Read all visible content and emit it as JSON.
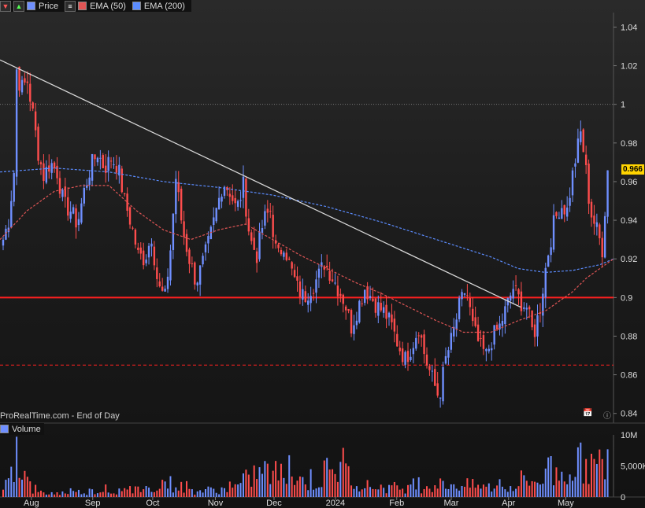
{
  "legend": {
    "price_label": "Price",
    "ema50_label": "EMA (50)",
    "ema200_label": "EMA (200)",
    "volume_label": "Volume"
  },
  "source_text": "ProRealTime.com - End of Day",
  "current_price_label": "0.966",
  "colors": {
    "up": "#6f8fff",
    "down": "#ff4d4d",
    "ema50": "#e05555",
    "ema200": "#5b8cff",
    "trendline": "#d8d8d8",
    "support": "#ff2020",
    "price_tag": "#ffd400"
  },
  "icons": [
    "calendar-icon",
    "info-icon",
    "arrow-down-icon",
    "arrow-up-icon",
    "list-icon"
  ],
  "chart_data": {
    "type": "candlestick",
    "price_axis": {
      "ticks": [
        "0.84",
        "0.86",
        "0.88",
        "0.9",
        "0.92",
        "0.94",
        "0.96",
        "0.98",
        "1",
        "1.02",
        "1.04"
      ],
      "ylim": [
        0.835,
        1.0475
      ]
    },
    "volume_axis": {
      "ticks": [
        "0",
        "5,000K",
        "10M"
      ],
      "ylim": [
        0,
        10000000
      ]
    },
    "x_labels": [
      {
        "label": "Aug",
        "week": 2.3
      },
      {
        "label": "Sep",
        "week": 6.8
      },
      {
        "label": "Oct",
        "week": 11.2
      },
      {
        "label": "Nov",
        "week": 15.8
      },
      {
        "label": "Dec",
        "week": 20.1
      },
      {
        "label": "2024",
        "week": 24.6
      },
      {
        "label": "Feb",
        "week": 29.1
      },
      {
        "label": "Mar",
        "week": 33.1
      },
      {
        "label": "Apr",
        "week": 37.3
      },
      {
        "label": "May",
        "week": 41.5
      }
    ],
    "horizontal_lines": [
      {
        "value": 0.9,
        "style": "solid"
      },
      {
        "value": 0.865,
        "style": "dashed"
      },
      {
        "value": 1.0,
        "style": "dotted"
      }
    ],
    "trendline": [
      {
        "week": 0,
        "value": 1.023
      },
      {
        "week": 38.2,
        "value": 0.895
      }
    ],
    "weeks_total": 45,
    "price_path": [
      [
        0,
        0.93
      ],
      [
        0.4,
        0.94
      ],
      [
        0.8,
        0.965
      ],
      [
        1.0,
        1.018
      ],
      [
        1.3,
        1.008
      ],
      [
        1.8,
        1.012
      ],
      [
        2.2,
        0.995
      ],
      [
        2.6,
        0.975
      ],
      [
        3.0,
        0.963
      ],
      [
        3.5,
        0.97
      ],
      [
        4.0,
        0.965
      ],
      [
        4.5,
        0.948
      ],
      [
        5.0,
        0.945
      ],
      [
        5.5,
        0.938
      ],
      [
        6.0,
        0.955
      ],
      [
        6.5,
        0.968
      ],
      [
        7.0,
        0.975
      ],
      [
        7.5,
        0.967
      ],
      [
        8.0,
        0.972
      ],
      [
        8.5,
        0.968
      ],
      [
        9.0,
        0.95
      ],
      [
        9.5,
        0.938
      ],
      [
        10.0,
        0.922
      ],
      [
        10.5,
        0.92
      ],
      [
        11.0,
        0.932
      ],
      [
        11.5,
        0.905
      ],
      [
        12.0,
        0.9
      ],
      [
        12.4,
        0.925
      ],
      [
        12.8,
        0.962
      ],
      [
        13.3,
        0.935
      ],
      [
        13.8,
        0.92
      ],
      [
        14.3,
        0.908
      ],
      [
        14.8,
        0.918
      ],
      [
        15.3,
        0.93
      ],
      [
        15.8,
        0.945
      ],
      [
        16.3,
        0.96
      ],
      [
        16.8,
        0.955
      ],
      [
        17.3,
        0.945
      ],
      [
        17.8,
        0.958
      ],
      [
        18.3,
        0.93
      ],
      [
        18.8,
        0.922
      ],
      [
        19.3,
        0.94
      ],
      [
        19.8,
        0.945
      ],
      [
        20.3,
        0.92
      ],
      [
        20.8,
        0.928
      ],
      [
        21.3,
        0.915
      ],
      [
        21.8,
        0.905
      ],
      [
        22.3,
        0.9
      ],
      [
        22.8,
        0.905
      ],
      [
        23.3,
        0.91
      ],
      [
        23.8,
        0.918
      ],
      [
        24.3,
        0.912
      ],
      [
        24.8,
        0.905
      ],
      [
        25.3,
        0.898
      ],
      [
        25.8,
        0.885
      ],
      [
        26.3,
        0.895
      ],
      [
        26.8,
        0.905
      ],
      [
        27.3,
        0.9
      ],
      [
        27.8,
        0.895
      ],
      [
        28.3,
        0.892
      ],
      [
        28.8,
        0.885
      ],
      [
        29.3,
        0.875
      ],
      [
        29.8,
        0.868
      ],
      [
        30.3,
        0.875
      ],
      [
        30.8,
        0.885
      ],
      [
        31.3,
        0.868
      ],
      [
        31.8,
        0.858
      ],
      [
        32.3,
        0.848
      ],
      [
        32.8,
        0.868
      ],
      [
        33.3,
        0.88
      ],
      [
        33.8,
        0.895
      ],
      [
        34.3,
        0.905
      ],
      [
        34.8,
        0.885
      ],
      [
        35.3,
        0.875
      ],
      [
        35.8,
        0.87
      ],
      [
        36.3,
        0.88
      ],
      [
        36.8,
        0.885
      ],
      [
        37.3,
        0.895
      ],
      [
        37.8,
        0.905
      ],
      [
        38.3,
        0.898
      ],
      [
        38.8,
        0.895
      ],
      [
        39.3,
        0.88
      ],
      [
        39.8,
        0.895
      ],
      [
        40.3,
        0.92
      ],
      [
        40.8,
        0.938
      ],
      [
        41.3,
        0.948
      ],
      [
        41.8,
        0.945
      ],
      [
        42.3,
        0.968
      ],
      [
        42.8,
        0.985
      ],
      [
        43.1,
        0.972
      ],
      [
        43.5,
        0.945
      ],
      [
        44.0,
        0.935
      ],
      [
        44.4,
        0.925
      ],
      [
        44.8,
        0.966
      ]
    ],
    "ema50_path": [
      [
        0,
        0.93
      ],
      [
        2,
        0.945
      ],
      [
        4,
        0.955
      ],
      [
        6,
        0.958
      ],
      [
        8,
        0.958
      ],
      [
        10,
        0.945
      ],
      [
        12,
        0.935
      ],
      [
        14,
        0.93
      ],
      [
        16,
        0.935
      ],
      [
        18,
        0.938
      ],
      [
        20,
        0.93
      ],
      [
        22,
        0.922
      ],
      [
        24,
        0.915
      ],
      [
        26,
        0.908
      ],
      [
        28,
        0.902
      ],
      [
        30,
        0.895
      ],
      [
        32,
        0.888
      ],
      [
        34,
        0.882
      ],
      [
        36,
        0.882
      ],
      [
        38,
        0.888
      ],
      [
        40,
        0.893
      ],
      [
        42,
        0.903
      ],
      [
        43,
        0.91
      ],
      [
        44,
        0.915
      ],
      [
        45,
        0.92
      ]
    ],
    "ema200_path": [
      [
        0,
        0.965
      ],
      [
        4,
        0.967
      ],
      [
        8,
        0.965
      ],
      [
        12,
        0.96
      ],
      [
        16,
        0.957
      ],
      [
        20,
        0.953
      ],
      [
        24,
        0.947
      ],
      [
        28,
        0.939
      ],
      [
        32,
        0.93
      ],
      [
        36,
        0.921
      ],
      [
        38,
        0.915
      ],
      [
        40,
        0.913
      ],
      [
        42,
        0.914
      ],
      [
        44,
        0.917
      ],
      [
        45,
        0.92
      ]
    ],
    "volume_profile": [
      [
        0,
        1.2
      ],
      [
        1,
        9.5
      ],
      [
        2,
        1.8
      ],
      [
        3,
        0.8
      ],
      [
        5,
        1.0
      ],
      [
        7,
        1.5
      ],
      [
        10,
        1.2
      ],
      [
        12,
        3.5
      ],
      [
        14,
        1.4
      ],
      [
        17,
        1.8
      ],
      [
        19,
        6.0
      ],
      [
        21,
        5.0
      ],
      [
        23,
        3.0
      ],
      [
        25,
        6.0
      ],
      [
        27,
        2.5
      ],
      [
        30,
        2.0
      ],
      [
        33,
        3.0
      ],
      [
        35,
        2.5
      ],
      [
        37,
        2.0
      ],
      [
        39,
        3.5
      ],
      [
        41,
        5.0
      ],
      [
        43,
        8.0
      ],
      [
        44,
        6.5
      ],
      [
        44.8,
        8.8
      ]
    ]
  }
}
